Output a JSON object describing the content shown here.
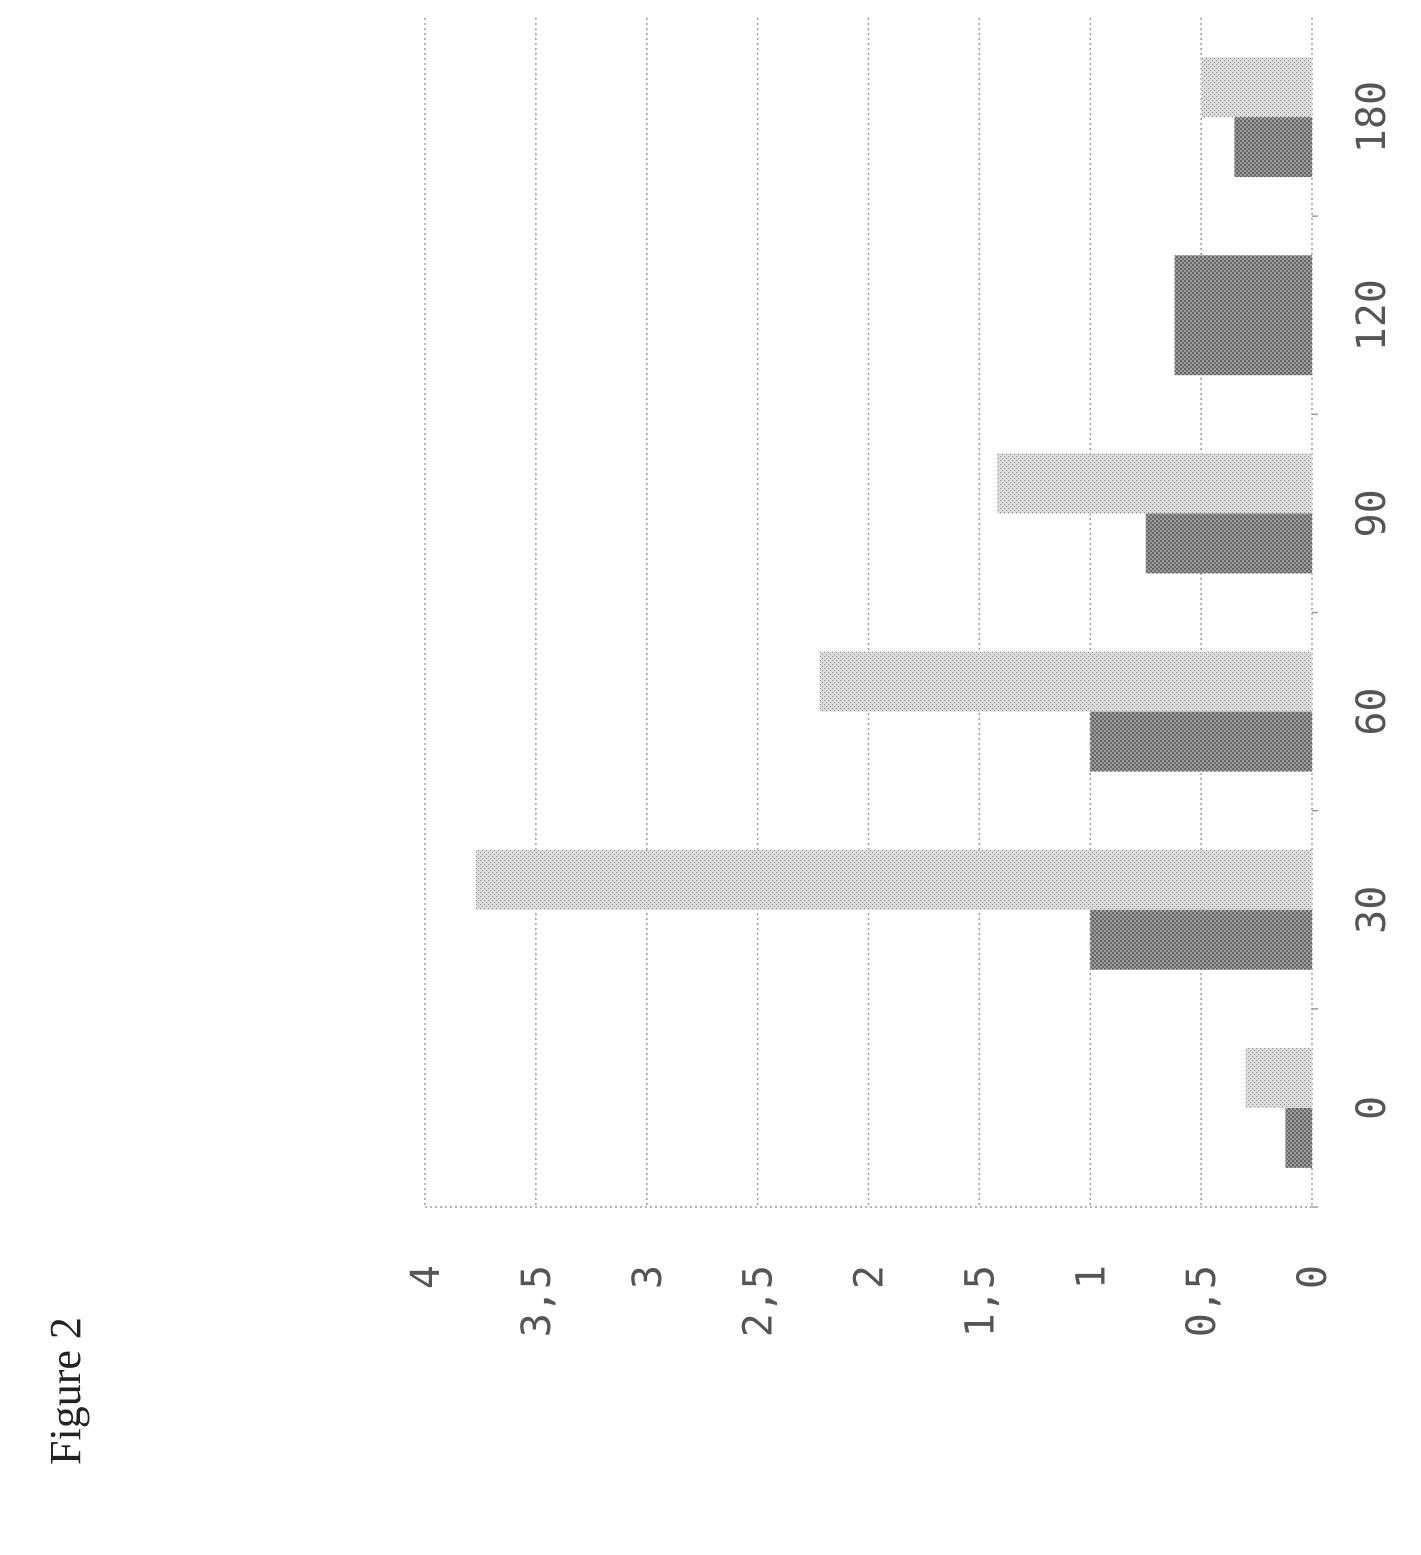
{
  "figure_label": "Figure 2",
  "chart_data": {
    "type": "bar",
    "orientation": "rotated-90",
    "categories": [
      "0",
      "30",
      "60",
      "90",
      "120",
      "180"
    ],
    "series": [
      {
        "values": [
          0.12,
          1.0,
          1.0,
          0.75,
          0.62,
          0.35
        ],
        "pattern": "dense-stipple"
      },
      {
        "values": [
          0.3,
          3.77,
          2.22,
          1.42,
          null,
          0.5
        ],
        "pattern": "light-stipple"
      }
    ],
    "y_ticks": [
      "0",
      "0,5",
      "1",
      "1,5",
      "2",
      "2,5",
      "3",
      "3,5",
      "4"
    ],
    "ylim": [
      0,
      4
    ],
    "grid": true,
    "colors": {
      "dark": "#8c8c8c",
      "light": "#bdbdbd",
      "grid": "#9a9a9a",
      "text": "#555555"
    }
  }
}
